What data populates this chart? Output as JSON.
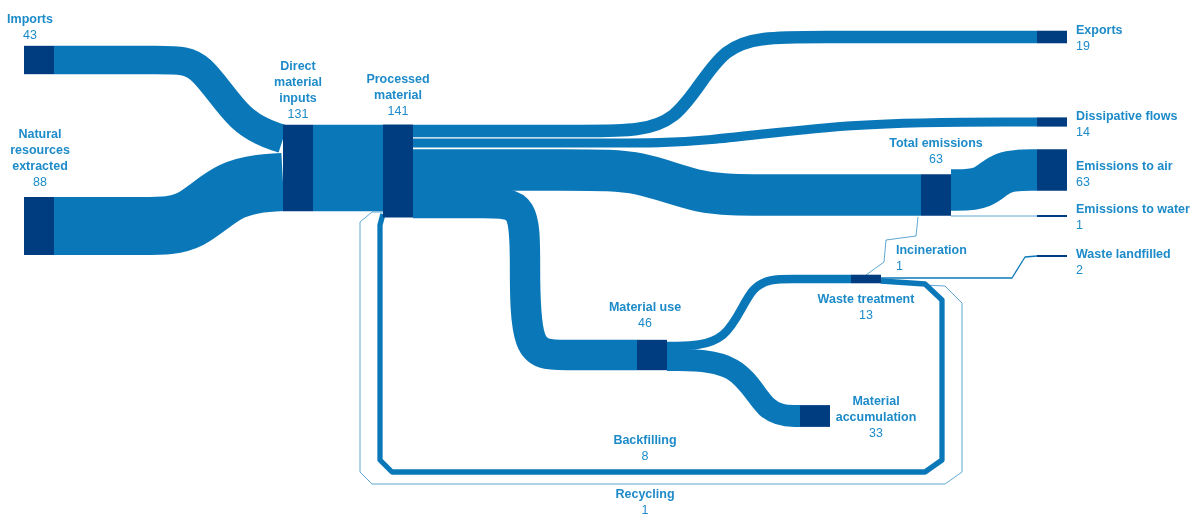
{
  "chart_data": {
    "type": "other",
    "data_labels": true,
    "categories": [
      "Imports",
      "Natural resources extracted",
      "Direct material inputs",
      "Processed material",
      "Exports",
      "Dissipative flows",
      "Total emissions",
      "Emissions to air",
      "Emissions to water",
      "Incineration",
      "Waste landfilled",
      "Waste treatment",
      "Material use",
      "Material accumulation",
      "Backfilling",
      "Recycling"
    ],
    "values": [
      43,
      88,
      131,
      141,
      19,
      14,
      63,
      63,
      1,
      1,
      2,
      13,
      46,
      33,
      8,
      1
    ]
  }
}
